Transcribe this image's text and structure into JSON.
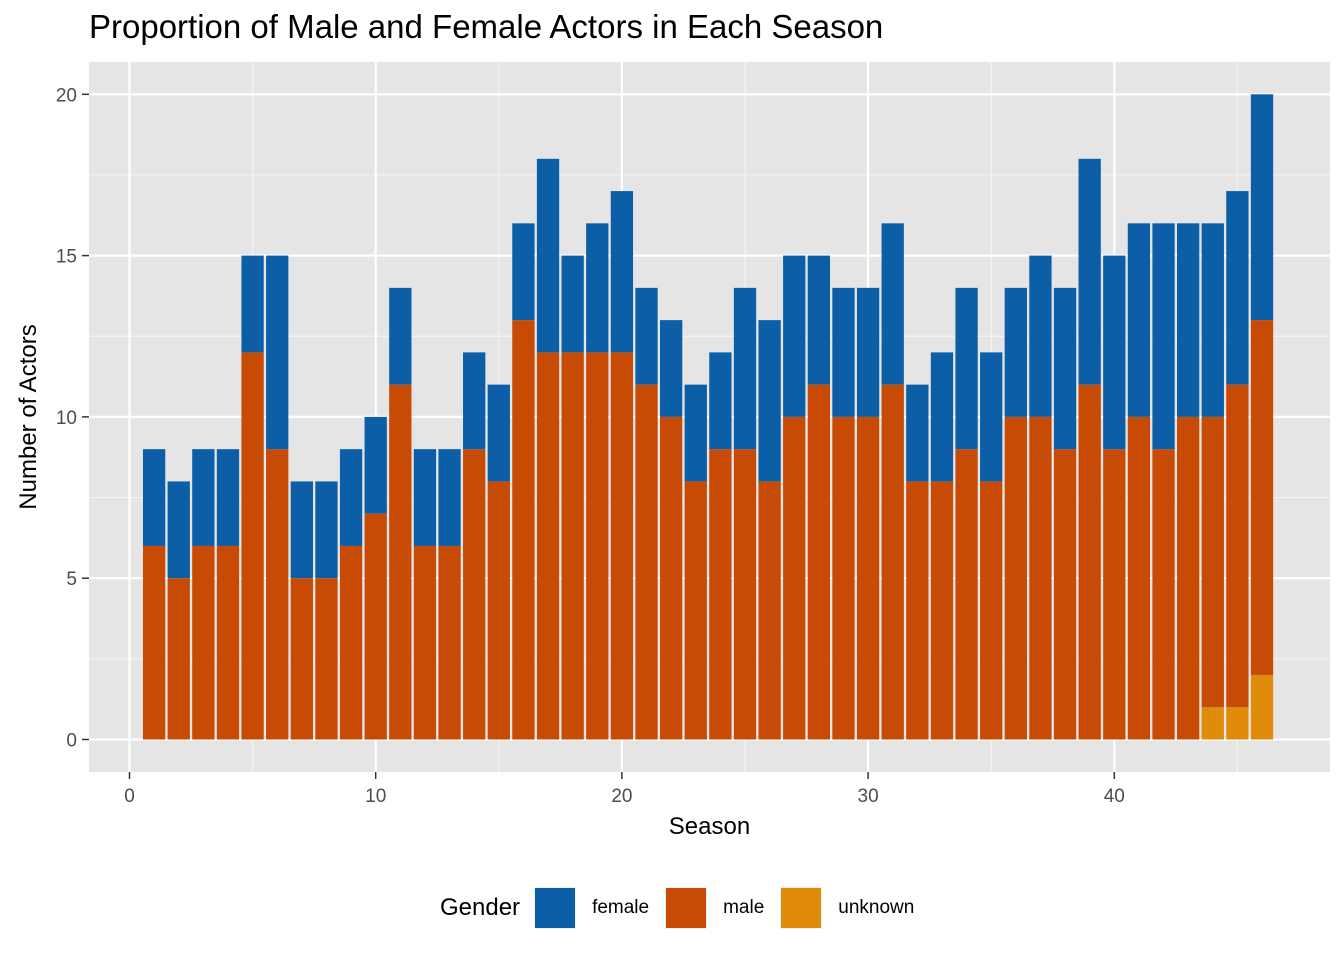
{
  "chart_data": {
    "type": "bar",
    "stacked": true,
    "title": "Proportion of Male and Female Actors in Each Season",
    "xlabel": "Season",
    "ylabel": "Number of Actors",
    "xlim": [
      0,
      48
    ],
    "ylim": [
      0,
      20
    ],
    "xticks": [
      0,
      10,
      20,
      30,
      40
    ],
    "yticks": [
      0,
      5,
      10,
      15,
      20
    ],
    "grid": true,
    "legend_position": "bottom",
    "legend_title": "Gender",
    "categories": [
      1,
      2,
      3,
      4,
      5,
      6,
      7,
      8,
      9,
      10,
      11,
      12,
      13,
      14,
      15,
      16,
      17,
      18,
      19,
      20,
      21,
      22,
      23,
      24,
      25,
      26,
      27,
      28,
      29,
      30,
      31,
      32,
      33,
      34,
      35,
      36,
      37,
      38,
      39,
      40,
      41,
      42,
      43,
      44,
      45,
      46
    ],
    "series": [
      {
        "name": "unknown",
        "color": "#E08C0A",
        "values": [
          0,
          0,
          0,
          0,
          0,
          0,
          0,
          0,
          0,
          0,
          0,
          0,
          0,
          0,
          0,
          0,
          0,
          0,
          0,
          0,
          0,
          0,
          0,
          0,
          0,
          0,
          0,
          0,
          0,
          0,
          0,
          0,
          0,
          0,
          0,
          0,
          0,
          0,
          0,
          0,
          0,
          0,
          0,
          1,
          1,
          2
        ]
      },
      {
        "name": "male",
        "color": "#C84B05",
        "values": [
          6,
          5,
          6,
          6,
          12,
          9,
          5,
          5,
          6,
          7,
          11,
          6,
          6,
          9,
          8,
          13,
          12,
          12,
          12,
          12,
          11,
          10,
          8,
          9,
          9,
          8,
          10,
          11,
          10,
          10,
          11,
          8,
          8,
          9,
          8,
          10,
          10,
          9,
          11,
          9,
          10,
          9,
          10,
          9,
          10,
          11
        ]
      },
      {
        "name": "female",
        "color": "#0C5FA6",
        "values": [
          3,
          3,
          3,
          3,
          3,
          6,
          3,
          3,
          3,
          3,
          3,
          3,
          3,
          3,
          3,
          3,
          6,
          3,
          4,
          5,
          3,
          3,
          3,
          3,
          5,
          5,
          5,
          4,
          4,
          4,
          5,
          3,
          4,
          5,
          4,
          4,
          5,
          5,
          7,
          6,
          6,
          7,
          6,
          6,
          6,
          7
        ]
      }
    ]
  }
}
